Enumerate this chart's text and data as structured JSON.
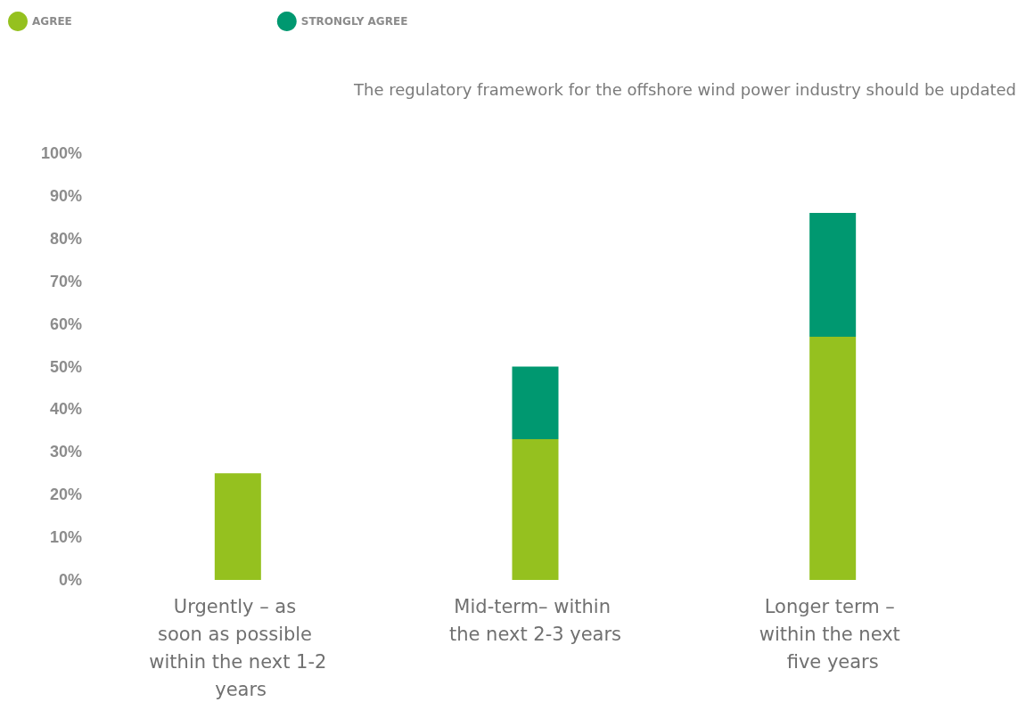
{
  "chart_data": {
    "type": "bar",
    "title": "The regulatory framework for the offshore wind power industry should be updated",
    "categories": [
      "Urgently – as soon as possible within the next 1-2 years",
      "Mid-term– within the next 2-3 years",
      "Longer term – within the next five years"
    ],
    "series": [
      {
        "name": "AGREE",
        "color": "#95c11f",
        "values": [
          25,
          33,
          57
        ]
      },
      {
        "name": "STRONGLY AGREE",
        "color": "#009870",
        "values": [
          null,
          17,
          29
        ]
      }
    ],
    "stacked": true,
    "ylim": [
      0,
      100
    ],
    "yticks": [
      {
        "value": 0,
        "label": "0%"
      },
      {
        "value": 10,
        "label": "10%"
      },
      {
        "value": 20,
        "label": "20%"
      },
      {
        "value": 30,
        "label": "30%"
      },
      {
        "value": 40,
        "label": "40%"
      },
      {
        "value": 50,
        "label": "50%"
      },
      {
        "value": 60,
        "label": "60%"
      },
      {
        "value": 70,
        "label": "70%"
      },
      {
        "value": 80,
        "label": "80%"
      },
      {
        "value": 90,
        "label": "90%"
      },
      {
        "value": 100,
        "label": "100%"
      }
    ],
    "grid": false,
    "legend": "top left"
  }
}
